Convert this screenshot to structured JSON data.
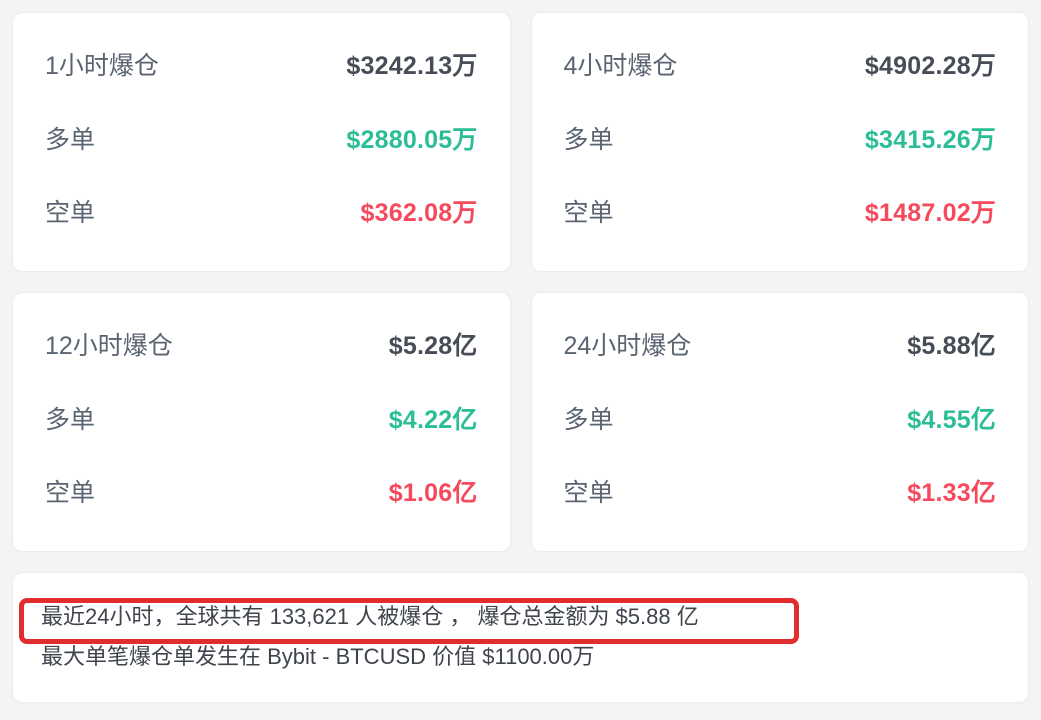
{
  "colors": {
    "page_bg": "#f4f4f6",
    "card_bg": "#ffffff",
    "card_border": "#ededf0",
    "text_label": "#5b6472",
    "text_value": "#474d57",
    "long_green": "#2abd96",
    "short_red": "#f5495c",
    "annotation_red": "#e12d2d",
    "summary_text": "#3f444c"
  },
  "cards": [
    {
      "period_label": "1小时爆仓",
      "total_value": "$3242.13万",
      "long_label": "多单",
      "long_value": "$2880.05万",
      "short_label": "空单",
      "short_value": "$362.08万"
    },
    {
      "period_label": "4小时爆仓",
      "total_value": "$4902.28万",
      "long_label": "多单",
      "long_value": "$3415.26万",
      "short_label": "空单",
      "short_value": "$1487.02万"
    },
    {
      "period_label": "12小时爆仓",
      "total_value": "$5.28亿",
      "long_label": "多单",
      "long_value": "$4.22亿",
      "short_label": "空单",
      "short_value": "$1.06亿"
    },
    {
      "period_label": "24小时爆仓",
      "total_value": "$5.88亿",
      "long_label": "多单",
      "long_value": "$4.55亿",
      "short_label": "空单",
      "short_value": "$1.33亿"
    }
  ],
  "summary": {
    "line1": "最近24小时，全球共有 133,621 人被爆仓 ， 爆仓总金额为 $5.88 亿",
    "line2": "最大单笔爆仓单发生在 Bybit - BTCUSD 价值 $1100.00万"
  }
}
